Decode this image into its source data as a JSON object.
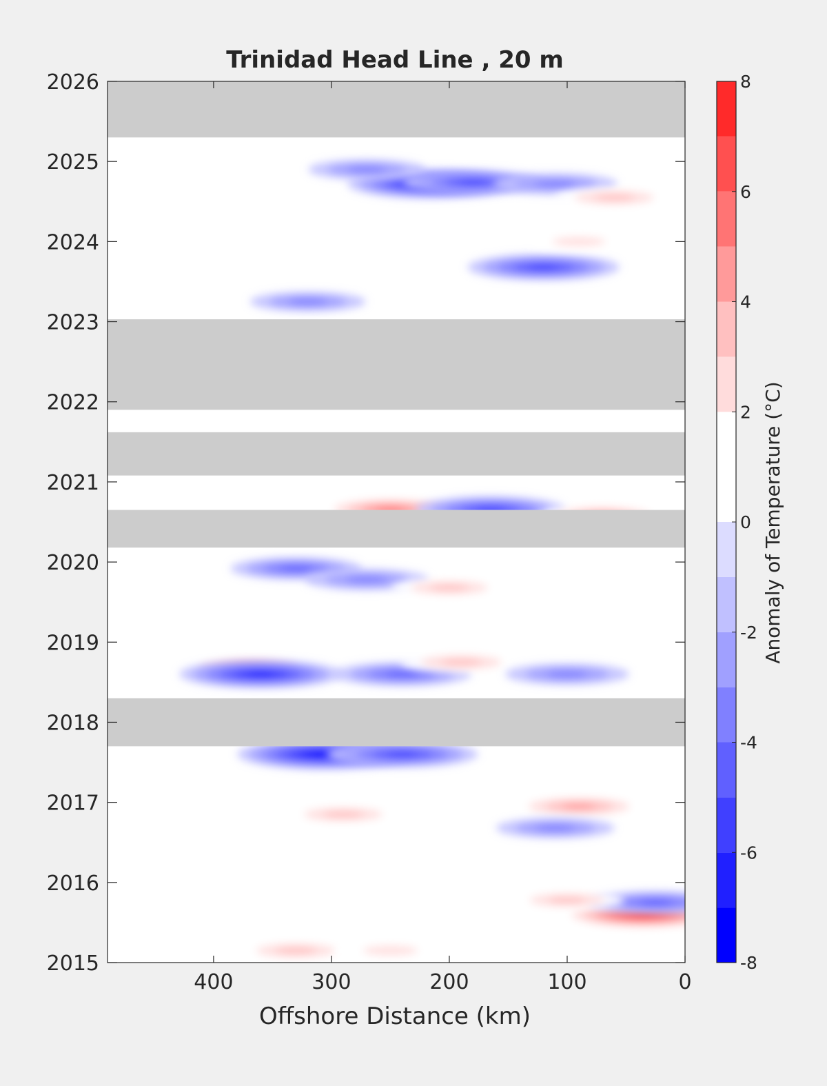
{
  "chart_data": {
    "type": "heatmap",
    "title": "Trinidad Head Line , 20 m",
    "xlabel": "Offshore Distance (km)",
    "ylabel": "",
    "xlim": [
      490,
      0
    ],
    "x_reversed": true,
    "ylim": [
      2015,
      2026
    ],
    "xticks": [
      "400",
      "300",
      "200",
      "100",
      "0"
    ],
    "yticks": [
      "2015",
      "2016",
      "2017",
      "2018",
      "2019",
      "2020",
      "2021",
      "2022",
      "2023",
      "2024",
      "2025",
      "2026"
    ],
    "colorbar": {
      "label": "Anomaly of Temperature (°C)",
      "range": [
        -8,
        8
      ],
      "step": 1,
      "ticks": [
        "-8",
        "-6",
        "-4",
        "-2",
        "0",
        "2",
        "4",
        "6",
        "8"
      ],
      "colors": [
        "#0000ff",
        "#2020ff",
        "#4040ff",
        "#6060ff",
        "#8080ff",
        "#a0a0ff",
        "#c0c0ff",
        "#dcdcff",
        "#ffffff",
        "#ffffff",
        "#ffdcdc",
        "#ffc0c0",
        "#ff9a9a",
        "#ff7474",
        "#ff5050",
        "#ff2a2a",
        "#ff0000"
      ]
    },
    "missing_color": "#cccccc",
    "no_data_periods": [
      {
        "t0": 2025.3,
        "t1": 2026.0
      },
      {
        "t0": 2023.03,
        "t1": 2021.9
      },
      {
        "t0": 2021.62,
        "t1": 2021.08
      },
      {
        "t0": 2020.65,
        "t1": 2020.18
      },
      {
        "t0": 2018.3,
        "t1": 2017.7
      }
    ],
    "anomaly_features": [
      {
        "x": 215,
        "t": 2024.72,
        "v": -6.2
      },
      {
        "x": 180,
        "t": 2024.74,
        "v": -4.2
      },
      {
        "x": 110,
        "t": 2024.72,
        "v": -3.0
      },
      {
        "x": 270,
        "t": 2024.9,
        "v": -2.5
      },
      {
        "x": 120,
        "t": 2023.68,
        "v": -5.0
      },
      {
        "x": 320,
        "t": 2023.25,
        "v": -2.4
      },
      {
        "x": 60,
        "t": 2024.55,
        "v": 2.6
      },
      {
        "x": 90,
        "t": 2024.0,
        "v": 1.8
      },
      {
        "x": 250,
        "t": 2020.66,
        "v": 4.2
      },
      {
        "x": 165,
        "t": 2020.66,
        "v": -4.8
      },
      {
        "x": 70,
        "t": 2020.58,
        "v": 3.2
      },
      {
        "x": 330,
        "t": 2019.92,
        "v": -3.5
      },
      {
        "x": 270,
        "t": 2019.78,
        "v": -3.0
      },
      {
        "x": 200,
        "t": 2019.68,
        "v": 2.4
      },
      {
        "x": 370,
        "t": 2018.68,
        "v": 3.6
      },
      {
        "x": 360,
        "t": 2018.6,
        "v": -5.8
      },
      {
        "x": 240,
        "t": 2018.6,
        "v": -4.0
      },
      {
        "x": 190,
        "t": 2018.75,
        "v": 2.8
      },
      {
        "x": 100,
        "t": 2018.6,
        "v": -3.0
      },
      {
        "x": 305,
        "t": 2017.6,
        "v": -6.8
      },
      {
        "x": 240,
        "t": 2017.6,
        "v": -5.0
      },
      {
        "x": 90,
        "t": 2016.95,
        "v": 3.8
      },
      {
        "x": 290,
        "t": 2016.85,
        "v": 2.6
      },
      {
        "x": 110,
        "t": 2016.68,
        "v": -2.6
      },
      {
        "x": 35,
        "t": 2015.6,
        "v": 6.2
      },
      {
        "x": 25,
        "t": 2015.75,
        "v": -3.8
      },
      {
        "x": 100,
        "t": 2015.78,
        "v": 2.2
      },
      {
        "x": 330,
        "t": 2015.15,
        "v": 2.7
      },
      {
        "x": 250,
        "t": 2015.15,
        "v": 2.0
      }
    ]
  }
}
